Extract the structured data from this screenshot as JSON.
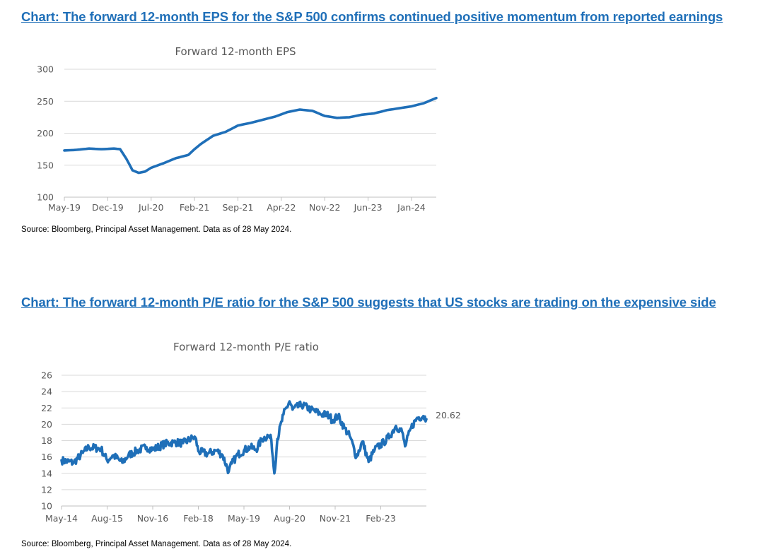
{
  "headlines": {
    "eps": "Chart: The forward 12-month EPS for the S&P 500 confirms continued positive momentum from reported earnings",
    "pe": "Chart: The forward 12-month P/E ratio for the S&P 500 suggests that US stocks are trading on the expensive side"
  },
  "sources": {
    "eps": "Source: Bloomberg, Principal Asset Management. Data as of 28 May 2024.",
    "pe": "Source: Bloomberg, Principal Asset Management. Data as of 28 May 2024."
  },
  "colors": {
    "headline": "#1f6fb8",
    "series": "#1f6fb8",
    "grid": "#d9d9d9",
    "text": "#595959"
  },
  "chart_data": [
    {
      "type": "line",
      "title": "Forward 12-month EPS",
      "xlabel": "",
      "ylabel": "",
      "ylim": [
        100,
        300
      ],
      "yticks": [
        100,
        150,
        200,
        250,
        300
      ],
      "xlim": [
        "2019-05",
        "2024-05"
      ],
      "xticks": [
        "May-19",
        "Dec-19",
        "Jul-20",
        "Feb-21",
        "Sep-21",
        "Apr-22",
        "Nov-22",
        "Jun-23",
        "Jan-24"
      ],
      "grid": true,
      "legend": false,
      "series": [
        {
          "x": [
            "2019-05",
            "2019-07",
            "2019-09",
            "2019-11",
            "2020-01",
            "2020-02",
            "2020-03",
            "2020-04",
            "2020-05",
            "2020-06",
            "2020-07",
            "2020-09",
            "2020-11",
            "2021-01",
            "2021-02",
            "2021-03",
            "2021-05",
            "2021-07",
            "2021-09",
            "2021-11",
            "2022-01",
            "2022-03",
            "2022-05",
            "2022-07",
            "2022-09",
            "2022-11",
            "2023-01",
            "2023-03",
            "2023-05",
            "2023-07",
            "2023-09",
            "2023-11",
            "2024-01",
            "2024-03",
            "2024-05"
          ],
          "values": [
            173,
            174,
            176,
            175,
            176,
            175,
            160,
            142,
            138,
            140,
            146,
            153,
            161,
            166,
            175,
            183,
            196,
            202,
            212,
            216,
            221,
            226,
            233,
            237,
            235,
            227,
            224,
            225,
            229,
            231,
            236,
            239,
            242,
            247,
            255
          ]
        }
      ]
    },
    {
      "type": "line",
      "title": "Forward 12-month P/E ratio",
      "xlabel": "",
      "ylabel": "",
      "ylim": [
        10,
        26
      ],
      "yticks": [
        10,
        12,
        14,
        16,
        18,
        20,
        22,
        24,
        26
      ],
      "xlim": [
        "2014-05",
        "2024-05"
      ],
      "xticks": [
        "May-14",
        "Aug-15",
        "Nov-16",
        "Feb-18",
        "May-19",
        "Aug-20",
        "Nov-21",
        "Feb-23"
      ],
      "grid": true,
      "legend": false,
      "last_value_label": "20.62",
      "series": [
        {
          "x": [
            "2014-05",
            "2014-09",
            "2014-12",
            "2015-02",
            "2015-06",
            "2015-08",
            "2015-10",
            "2016-01",
            "2016-03",
            "2016-06",
            "2016-09",
            "2016-11",
            "2017-03",
            "2017-06",
            "2017-09",
            "2017-12",
            "2018-01",
            "2018-02",
            "2018-05",
            "2018-08",
            "2018-10",
            "2018-12",
            "2019-01",
            "2019-03",
            "2019-05",
            "2019-07",
            "2019-09",
            "2019-11",
            "2020-01",
            "2020-02",
            "2020-03",
            "2020-04",
            "2020-06",
            "2020-08",
            "2020-09",
            "2020-12",
            "2021-03",
            "2021-06",
            "2021-09",
            "2021-10",
            "2021-12",
            "2022-02",
            "2022-04",
            "2022-06",
            "2022-08",
            "2022-10",
            "2022-12",
            "2023-03",
            "2023-05",
            "2023-07",
            "2023-09",
            "2023-10",
            "2023-12",
            "2024-02",
            "2024-04",
            "2024-05"
          ],
          "values": [
            15.6,
            15.3,
            16.5,
            17.2,
            17.0,
            15.6,
            16.2,
            15.3,
            16.2,
            16.8,
            17.2,
            16.9,
            17.6,
            17.8,
            17.7,
            18.3,
            18.4,
            16.7,
            16.4,
            16.8,
            16.2,
            14.2,
            15.2,
            16.3,
            16.8,
            17.2,
            16.9,
            18.2,
            18.6,
            18.1,
            14.0,
            18.2,
            21.2,
            22.8,
            21.8,
            22.4,
            21.8,
            21.3,
            21.1,
            20.5,
            21.0,
            19.6,
            18.4,
            16.0,
            17.9,
            15.4,
            16.9,
            17.8,
            18.6,
            19.8,
            19.1,
            17.3,
            19.6,
            20.8,
            21.0,
            20.62
          ]
        }
      ]
    }
  ]
}
